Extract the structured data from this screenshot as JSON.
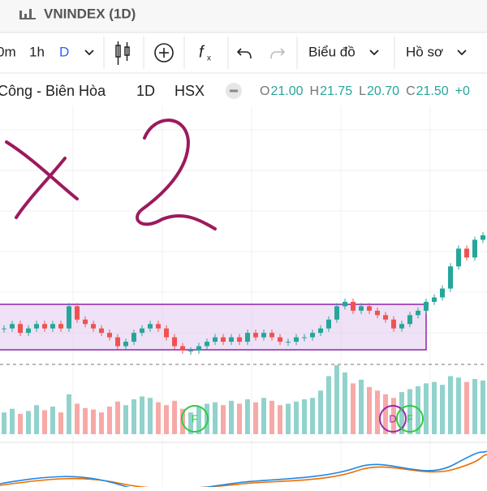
{
  "header": {
    "title": "VNINDEX (1D)"
  },
  "toolbar": {
    "intervals": [
      "0m",
      "1h",
      "D"
    ],
    "chart_menu": "Biểu đồ",
    "profile_menu": "Hồ sơ"
  },
  "symbol": {
    "name": "Công - Biên Hòa",
    "interval": "1D",
    "exchange": "HSX",
    "ohlc": [
      {
        "key": "O",
        "value": {
          "value": 21,
          "label": "21.00"
        }
      },
      {
        "key": "H",
        "value": {
          "value": 21.75,
          "label": "21.75"
        }
      },
      {
        "key": "L",
        "value": {
          "value": 20.7,
          "label": "20.70"
        }
      },
      {
        "key": "C",
        "value": {
          "value": 21.5,
          "label": "21.50"
        }
      }
    ],
    "change": {
      "value": 0,
      "label": "+0"
    }
  },
  "chart": {
    "closes": [
      19.4,
      19.5,
      19.3,
      19.4,
      19.5,
      19.4,
      19.5,
      19.4,
      19.9,
      19.6,
      19.5,
      19.4,
      19.3,
      19.2,
      19.0,
      19.1,
      19.3,
      19.4,
      19.5,
      19.4,
      19.2,
      19.0,
      18.9,
      18.9,
      19.0,
      19.1,
      19.2,
      19.1,
      19.2,
      19.1,
      19.3,
      19.2,
      19.3,
      19.2,
      19.1,
      19.1,
      19.2,
      19.2,
      19.3,
      19.4,
      19.6,
      19.9,
      20.0,
      19.8,
      19.9,
      19.8,
      19.7,
      19.6,
      19.4,
      19.5,
      19.7,
      19.8,
      20.0,
      20.1,
      20.3,
      20.8,
      21.2,
      21.0,
      21.4,
      21.5
    ],
    "volumes": [
      30,
      35,
      28,
      32,
      40,
      33,
      38,
      30,
      55,
      42,
      36,
      34,
      30,
      38,
      45,
      40,
      48,
      52,
      50,
      44,
      40,
      46,
      35,
      30,
      38,
      42,
      44,
      40,
      46,
      42,
      48,
      44,
      50,
      46,
      40,
      42,
      45,
      48,
      50,
      60,
      80,
      95,
      85,
      70,
      75,
      65,
      60,
      55,
      50,
      58,
      62,
      66,
      70,
      72,
      68,
      80,
      78,
      72,
      76,
      74
    ],
    "markers": [
      "F",
      "D",
      "F"
    ]
  }
}
